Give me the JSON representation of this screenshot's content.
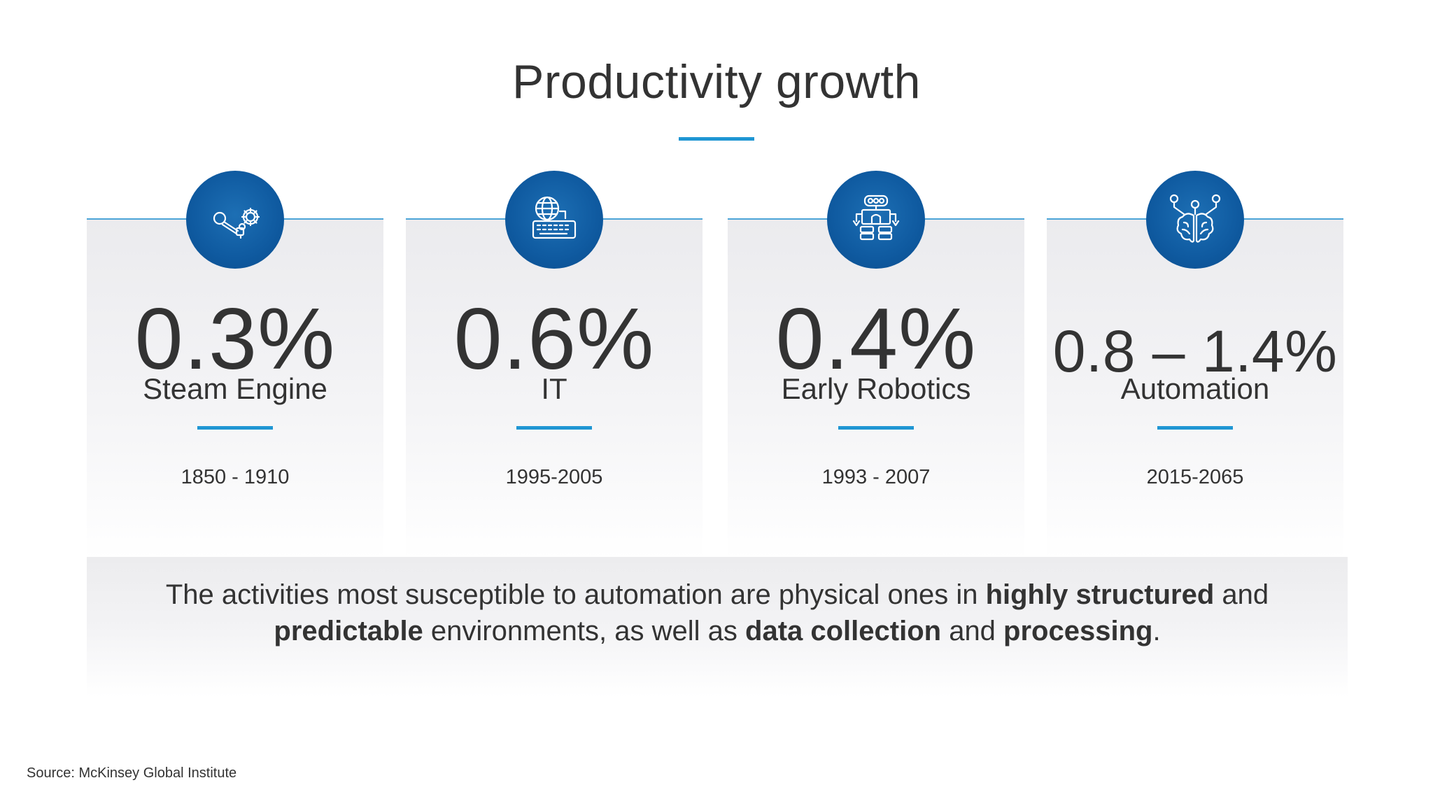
{
  "title": "Productivity growth",
  "accent_color": "#1f96d3",
  "icon_bg_color": "#0f5aa0",
  "cards": [
    {
      "icon": "steam-engine-icon",
      "value": "0.3%",
      "label": "Steam Engine",
      "period": "1850 - 1910"
    },
    {
      "icon": "globe-keyboard-icon",
      "value": "0.6%",
      "label": "IT",
      "period": "1995-2005"
    },
    {
      "icon": "robot-icon",
      "value": "0.4%",
      "label": "Early Robotics",
      "period": "1993 - 2007"
    },
    {
      "icon": "brain-circuit-icon",
      "value": "0.8 – 1.4%",
      "label": "Automation",
      "period": "2015-2065"
    }
  ],
  "summary": {
    "p1": "The activities most susceptible to automation are physical ones in ",
    "b1": "highly structured",
    "p2": " and ",
    "b2": "predictable",
    "p3": " environments, as well as ",
    "b3": "data collection",
    "p4": " and ",
    "b4": "processing",
    "p5": "."
  },
  "source": "Source: McKinsey Global Institute"
}
